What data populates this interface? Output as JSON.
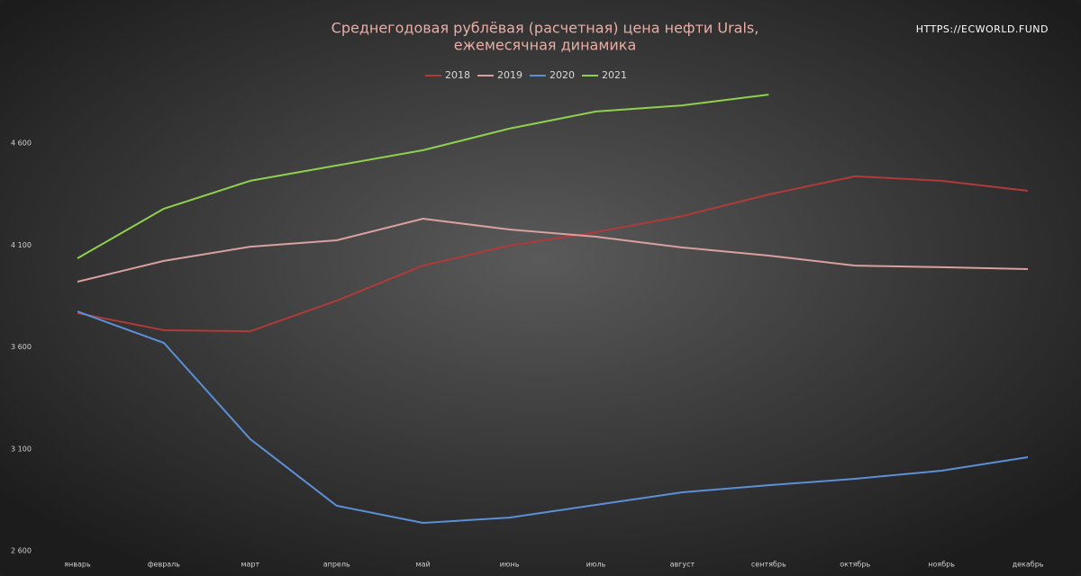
{
  "chart_data": {
    "type": "line",
    "title": "Среднегодовая рублёвая (расчетная) цена нефти Urals,",
    "subtitle": "ежемесячная динамика",
    "watermark": "HTTPS://ECWORLD.FUND",
    "categories": [
      "январь",
      "февраль",
      "март",
      "апрель",
      "май",
      "июнь",
      "июль",
      "август",
      "сентябрь",
      "октябрь",
      "ноябрь",
      "декабрь"
    ],
    "series": [
      {
        "name": "2018",
        "color": "#b03a3a",
        "values": [
          3766,
          3682,
          3677,
          3827,
          3999,
          4097,
          4163,
          4242,
          4348,
          4437,
          4415,
          4366
        ]
      },
      {
        "name": "2019",
        "color": "#d9a0a0",
        "values": [
          3920,
          4022,
          4092,
          4123,
          4229,
          4176,
          4141,
          4088,
          4048,
          3999,
          3991,
          3982
        ]
      },
      {
        "name": "2020",
        "color": "#5b8fd6",
        "values": [
          3774,
          3620,
          3148,
          2821,
          2737,
          2763,
          2825,
          2887,
          2922,
          2953,
          2993,
          3059
        ]
      },
      {
        "name": "2021",
        "color": "#8fd14f",
        "values": [
          4035,
          4278,
          4415,
          4490,
          4565,
          4671,
          4755,
          4785,
          4838,
          null,
          null,
          null
        ]
      }
    ],
    "ylim": [
      2600,
      5100
    ],
    "yticks": [
      {
        "value": 2600,
        "label": "2 600"
      },
      {
        "value": 3100,
        "label": "3 100"
      },
      {
        "value": 3600,
        "label": "3 600"
      },
      {
        "value": 4100,
        "label": "4 100"
      },
      {
        "value": 4600,
        "label": "4 600"
      }
    ],
    "grid": false,
    "legend": "top"
  }
}
